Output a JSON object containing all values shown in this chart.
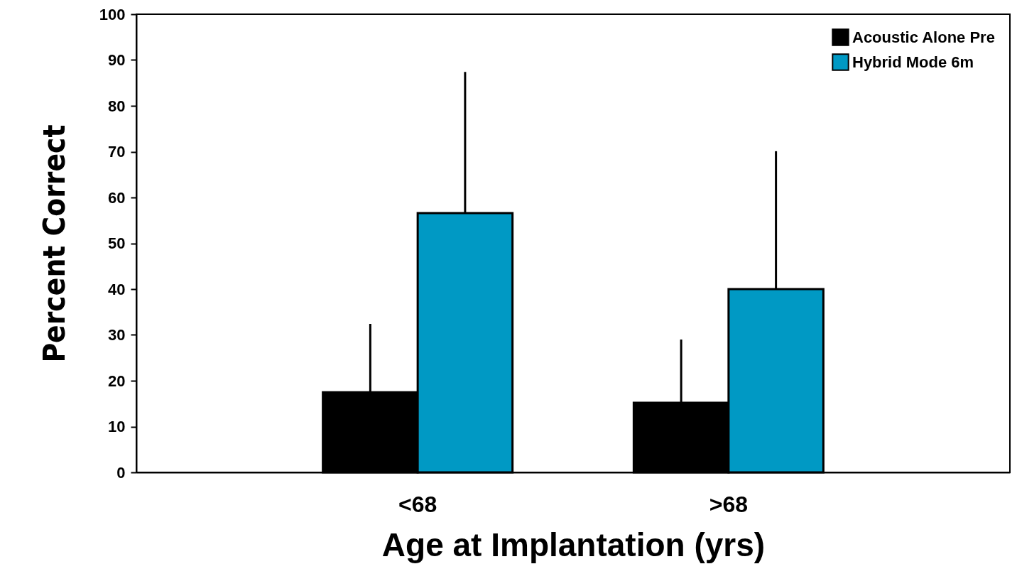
{
  "chart_data": {
    "type": "bar",
    "xlabel": "Age at Implantation (yrs)",
    "ylabel": "Percent Correct",
    "categories": [
      "<68",
      ">68"
    ],
    "series": [
      {
        "name": "Acoustic Alone Pre",
        "color": "#000000",
        "values": [
          17.5,
          15.2
        ],
        "errors": [
          [
            17.5,
            32.4
          ],
          [
            15.2,
            29.0
          ]
        ]
      },
      {
        "name": "Hybrid Mode 6m",
        "color": "#0099c4",
        "values": [
          56.6,
          40.0
        ],
        "errors": [
          [
            56.6,
            87.4
          ],
          [
            40.0,
            70.1
          ]
        ]
      }
    ],
    "ylim": [
      0,
      100
    ],
    "yticks": [
      0,
      10,
      20,
      30,
      40,
      50,
      60,
      70,
      80,
      90,
      100
    ],
    "legend": "top right"
  }
}
